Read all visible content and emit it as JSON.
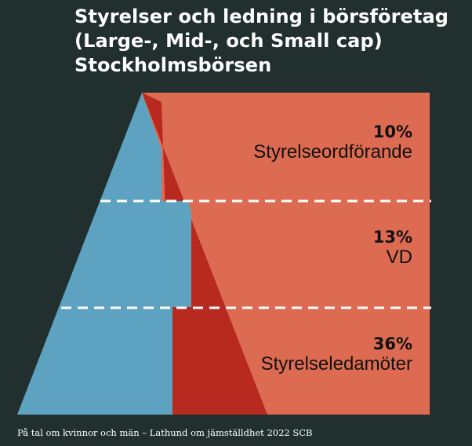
{
  "title": {
    "line1": "Styrelser och ledning i börsföretag",
    "line2": "(Large-, Mid-, och Small cap)",
    "line3": "Stockholmsbörsen"
  },
  "levels": [
    {
      "percent": "10%",
      "label": "Styrelseordförande",
      "value": 10
    },
    {
      "percent": "13%",
      "label": "VD",
      "value": 13
    },
    {
      "percent": "36%",
      "label": "Styrelseledamöter",
      "value": 36
    }
  ],
  "footer": "På tal om kvinnor och män – Lathund om jämställdhet 2022 SCB",
  "colors": {
    "background": "#21302f",
    "men": "#5da3c1",
    "women": "#b8291f",
    "panel": "#dd6b52",
    "divider": "#ffffff"
  }
}
